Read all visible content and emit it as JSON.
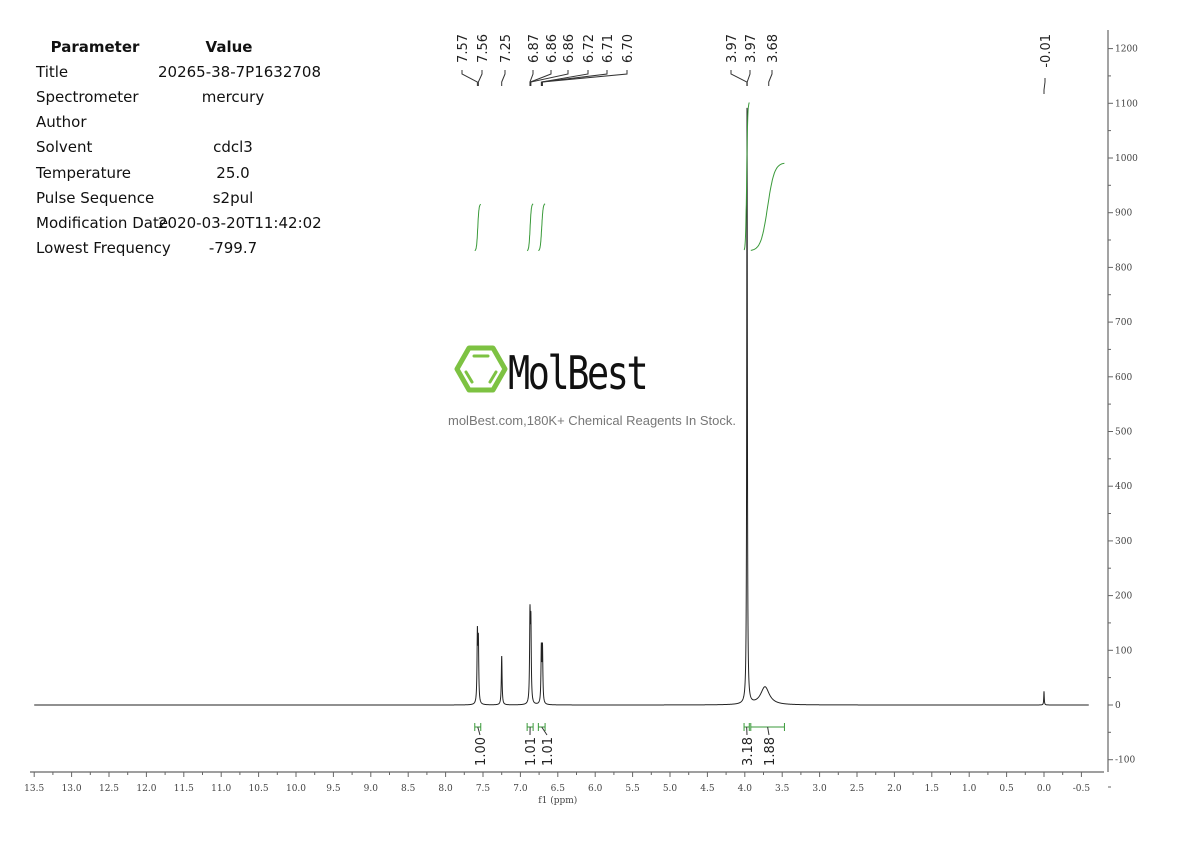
{
  "parameters": {
    "header": {
      "key": "Parameter",
      "value": "Value"
    },
    "rows": [
      {
        "key": "Title",
        "value": "20265-38-7P1632708"
      },
      {
        "key": "Spectrometer",
        "value": "mercury"
      },
      {
        "key": "Author",
        "value": ""
      },
      {
        "key": "Solvent",
        "value": "cdcl3"
      },
      {
        "key": "Temperature",
        "value": "25.0"
      },
      {
        "key": "Pulse Sequence",
        "value": "s2pul"
      },
      {
        "key": "Modification Date",
        "value": "2020-03-20T11:42:02"
      },
      {
        "key": "Lowest Frequency",
        "value": "-799.7"
      }
    ]
  },
  "watermark": {
    "brand": "MolBest",
    "tagline": "molBest.com,180K+ Chemical Reagents In Stock.",
    "color": "#7dc242"
  },
  "chart_data": {
    "type": "line",
    "xlabel": "f1 (ppm)",
    "ylabel": "",
    "xlim": [
      13.5,
      -0.5
    ],
    "ylim": [
      -100,
      1200
    ],
    "x_ticks": [
      "13.5",
      "13.0",
      "12.5",
      "12.0",
      "11.5",
      "11.0",
      "10.5",
      "10.0",
      "9.5",
      "9.0",
      "8.5",
      "8.0",
      "7.5",
      "7.0",
      "6.5",
      "6.0",
      "5.5",
      "5.0",
      "4.5",
      "4.0",
      "3.5",
      "3.0",
      "2.5",
      "2.0",
      "1.5",
      "1.0",
      "0.5",
      "0.0",
      "-0.5"
    ],
    "y_ticks": [
      "1200",
      "1100",
      "1000",
      "900",
      "800",
      "700",
      "600",
      "500",
      "400",
      "300",
      "200",
      "100",
      "0",
      "-100"
    ],
    "peaks": [
      {
        "ppm": 7.575,
        "intensity": 125,
        "width": 0.006
      },
      {
        "ppm": 7.562,
        "intensity": 110,
        "width": 0.006
      },
      {
        "ppm": 7.25,
        "intensity": 90,
        "width": 0.006
      },
      {
        "ppm": 6.872,
        "intensity": 155,
        "width": 0.006
      },
      {
        "ppm": 6.86,
        "intensity": 140,
        "width": 0.006
      },
      {
        "ppm": 6.72,
        "intensity": 100,
        "width": 0.006
      },
      {
        "ppm": 6.705,
        "intensity": 100,
        "width": 0.006
      },
      {
        "ppm": 3.97,
        "intensity": 1100,
        "width": 0.005
      },
      {
        "ppm": 3.73,
        "intensity": 33,
        "width": 0.07
      },
      {
        "ppm": 0.0,
        "intensity": 25,
        "width": 0.004
      }
    ],
    "peak_labels": [
      "7.57",
      "7.56",
      "7.25",
      "6.87",
      "6.86",
      "6.86",
      "6.72",
      "6.71",
      "6.70",
      "3.97",
      "3.97",
      "3.68",
      "-0.01"
    ],
    "integrals": [
      {
        "from": 7.61,
        "to": 7.53,
        "value": "1.00"
      },
      {
        "from": 6.91,
        "to": 6.83,
        "value": "1.01"
      },
      {
        "from": 6.76,
        "to": 6.67,
        "value": "1.01"
      },
      {
        "from": 4.01,
        "to": 3.94,
        "value": "3.18"
      },
      {
        "from": 3.92,
        "to": 3.47,
        "value": "1.88"
      }
    ],
    "line_color": "#222222",
    "integral_color": "#3a9a3a",
    "grid": false
  }
}
